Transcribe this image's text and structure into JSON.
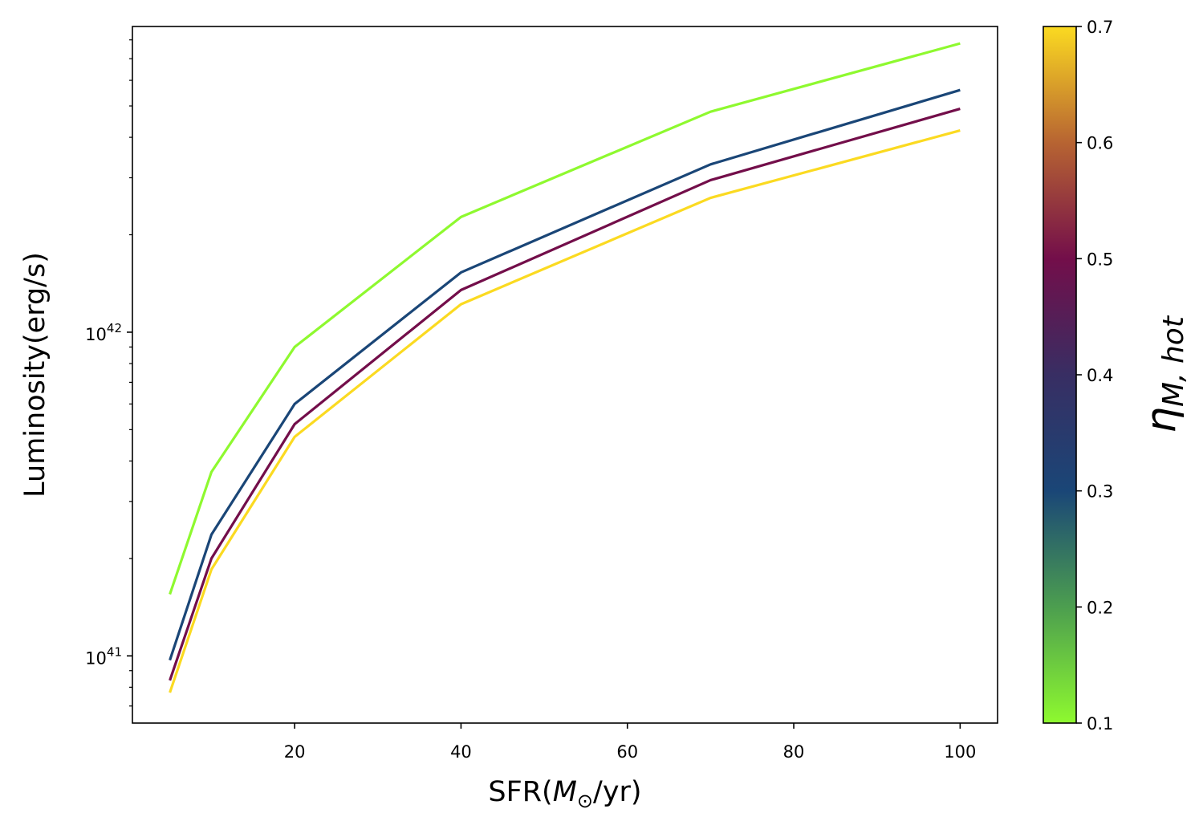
{
  "chart_data": {
    "type": "line",
    "xlabel": {
      "prefix": "SFR(",
      "symbol": "M",
      "subscript": "⊙",
      "suffix": "/yr)"
    },
    "ylabel": "Luminosity(erg/s)",
    "x": [
      5,
      10,
      20,
      40,
      70,
      100
    ],
    "xlim": [
      0.5,
      104.5
    ],
    "xticks": [
      20,
      40,
      60,
      80,
      100
    ],
    "yscale": "log",
    "ylim": [
      6.2e+40,
      8.8e+42
    ],
    "yticks": [
      {
        "value": 1e+41,
        "base": "10",
        "exp": "41"
      },
      {
        "value": 1e+42,
        "base": "10",
        "exp": "42"
      }
    ],
    "grid": false,
    "legend": "none",
    "series": [
      {
        "eta": 0.1,
        "color": "#8ef92f",
        "values": [
          1.55e+41,
          3.7e+41,
          9e+41,
          2.27e+42,
          4.8e+42,
          7.8e+42
        ]
      },
      {
        "eta": 0.3,
        "color": "#1a4677",
        "values": [
          9.7e+40,
          2.37e+41,
          6e+41,
          1.53e+42,
          3.3e+42,
          5.6e+42
        ]
      },
      {
        "eta": 0.5,
        "color": "#730e4a",
        "values": [
          8.4e+40,
          2e+41,
          5.2e+41,
          1.35e+42,
          2.95e+42,
          4.9e+42
        ]
      },
      {
        "eta": 0.7,
        "color": "#fbda21",
        "values": [
          7.7e+40,
          1.85e+41,
          4.75e+41,
          1.22e+42,
          2.6e+42,
          4.2e+42
        ]
      }
    ],
    "colorbar": {
      "label": {
        "symbol": "η",
        "subscript": "M, hot"
      },
      "range": [
        0.1,
        0.7
      ],
      "ticks": [
        "0.1",
        "0.2",
        "0.3",
        "0.4",
        "0.5",
        "0.6",
        "0.7"
      ],
      "stops": [
        {
          "value": 0.1,
          "color": "#8ef92f"
        },
        {
          "value": 0.2,
          "color": "#4c9e4f"
        },
        {
          "value": 0.3,
          "color": "#1a4677"
        },
        {
          "value": 0.4,
          "color": "#382e63"
        },
        {
          "value": 0.5,
          "color": "#730e4a"
        },
        {
          "value": 0.6,
          "color": "#b76432"
        },
        {
          "value": 0.7,
          "color": "#fbda21"
        }
      ]
    }
  }
}
